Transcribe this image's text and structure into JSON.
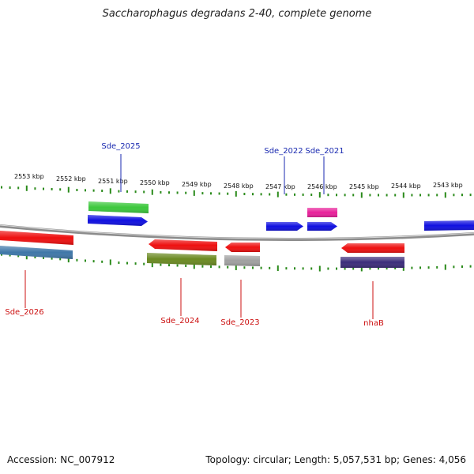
{
  "title": "Saccharophagus degradans 2-40, complete genome",
  "footer": {
    "accession": "Accession: NC_007912",
    "summary": "Topology: circular; Length: 5,057,531 bp; Genes: 4,056"
  },
  "ruler": {
    "labels": [
      "2553 kbp",
      "2552 kbp",
      "2551 kbp",
      "2550 kbp",
      "2549 kbp",
      "2548 kbp",
      "2547 kbp",
      "2546 kbp",
      "2545 kbp",
      "2544 kbp",
      "2543 kbp"
    ],
    "tick_color": "#2a8a1a"
  },
  "backbone_color": "#8c8c8c",
  "genes": [
    {
      "id": "g_green_top",
      "color": "#3cc83c",
      "strand": "+"
    },
    {
      "id": "g_blue_top",
      "color": "#1010e0",
      "strand": "+",
      "label": "Sde_2025",
      "label_color": "#1a2ab0"
    },
    {
      "id": "g_blue_2022",
      "color": "#1010e0",
      "strand": "+",
      "label": "Sde_2022",
      "label_color": "#1a2ab0"
    },
    {
      "id": "g_blue_2021",
      "color": "#1010e0",
      "strand": "+",
      "label": "Sde_2021",
      "label_color": "#1a2ab0"
    },
    {
      "id": "g_pink",
      "color": "#e8209a",
      "strand": "+"
    },
    {
      "id": "g_blue_right",
      "color": "#1010e0",
      "strand": "+"
    },
    {
      "id": "g_red_2026",
      "color": "#ee1010",
      "strand": "-",
      "label": "Sde_2026",
      "label_color": "#cc1010"
    },
    {
      "id": "g_steel",
      "color": "#3f77a8",
      "strand": "-"
    },
    {
      "id": "g_red_2024",
      "color": "#ee1010",
      "strand": "-",
      "label": "Sde_2024",
      "label_color": "#cc1010"
    },
    {
      "id": "g_olive",
      "color": "#6b8a22",
      "strand": "-"
    },
    {
      "id": "g_red_2023",
      "color": "#ee1010",
      "strand": "-",
      "label": "Sde_2023",
      "label_color": "#cc1010"
    },
    {
      "id": "g_gray",
      "color": "#a0a0a0",
      "strand": "-"
    },
    {
      "id": "g_red_nhab",
      "color": "#ee1010",
      "strand": "-",
      "label": "nhaB",
      "label_color": "#cc1010"
    },
    {
      "id": "g_purple",
      "color": "#3c2d7a",
      "strand": "-"
    }
  ]
}
